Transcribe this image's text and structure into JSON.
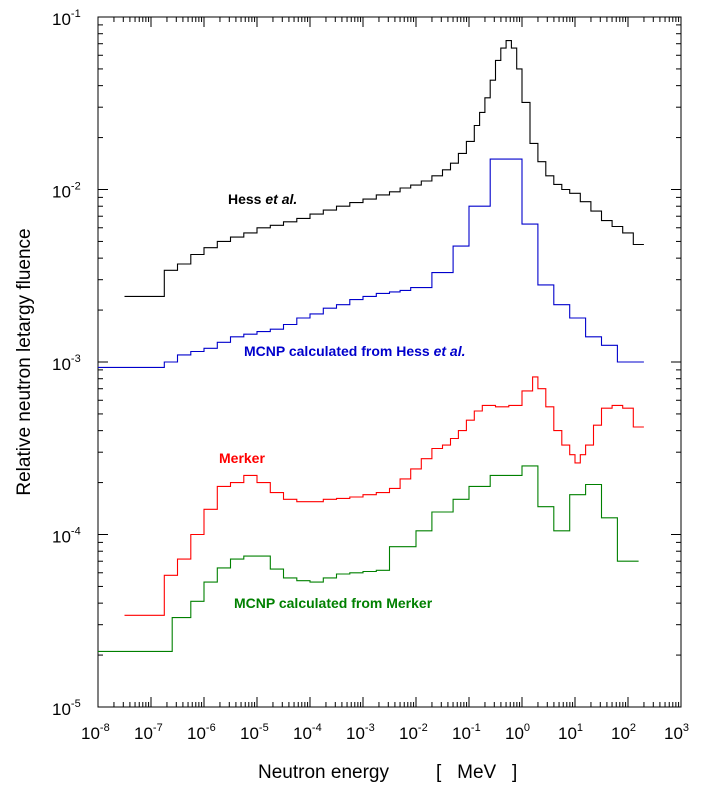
{
  "chart_data": {
    "type": "line",
    "title": "",
    "xlabel": "Neutron energy",
    "xunit": "[   MeV   ]",
    "ylabel": "Relative neutron letargy fluence",
    "xscale": "log",
    "yscale": "log",
    "xlim_exp": [
      -8,
      3
    ],
    "ylim_exp": [
      -5,
      -1
    ],
    "x_ticks": [
      {
        "base": "10",
        "exp": "-8"
      },
      {
        "base": "10",
        "exp": "-7"
      },
      {
        "base": "10",
        "exp": "-6"
      },
      {
        "base": "10",
        "exp": "-5"
      },
      {
        "base": "10",
        "exp": "-4"
      },
      {
        "base": "10",
        "exp": "-3"
      },
      {
        "base": "10",
        "exp": "-2"
      },
      {
        "base": "10",
        "exp": "-1"
      },
      {
        "base": "10",
        "exp": "0"
      },
      {
        "base": "10",
        "exp": "1"
      },
      {
        "base": "10",
        "exp": "2"
      },
      {
        "base": "10",
        "exp": "3"
      }
    ],
    "y_ticks": [
      {
        "base": "10",
        "exp": "-5"
      },
      {
        "base": "10",
        "exp": "-4"
      },
      {
        "base": "10",
        "exp": "-3"
      },
      {
        "base": "10",
        "exp": "-2"
      },
      {
        "base": "10",
        "exp": "-1"
      }
    ],
    "series": [
      {
        "name": "Hess et al.",
        "label_main": "Hess ",
        "label_italic": "et al.",
        "color": "#000000",
        "edges": [
          -7.5,
          -6.75,
          -6.5,
          -6.25,
          -6,
          -5.75,
          -5.5,
          -5.25,
          -5,
          -4.75,
          -4.5,
          -4.25,
          -4,
          -3.75,
          -3.5,
          -3.25,
          -3,
          -2.75,
          -2.5,
          -2.3,
          -2.1,
          -1.9,
          -1.7,
          -1.5,
          -1.35,
          -1.2,
          -1.05,
          -0.9,
          -0.8,
          -0.7,
          -0.6,
          -0.5,
          -0.4,
          -0.3,
          -0.2,
          -0.1,
          0,
          0.15,
          0.3,
          0.45,
          0.6,
          0.75,
          0.9,
          1.1,
          1.3,
          1.5,
          1.7,
          1.9,
          2.1,
          2.3
        ],
        "values": [
          0.0024,
          0.0034,
          0.0037,
          0.0042,
          0.0046,
          0.005,
          0.0053,
          0.0056,
          0.006,
          0.0062,
          0.0065,
          0.0068,
          0.0072,
          0.0076,
          0.008,
          0.0084,
          0.0088,
          0.0093,
          0.0097,
          0.0102,
          0.0106,
          0.0112,
          0.012,
          0.013,
          0.0142,
          0.0162,
          0.019,
          0.0235,
          0.028,
          0.034,
          0.043,
          0.056,
          0.066,
          0.073,
          0.066,
          0.05,
          0.032,
          0.0185,
          0.0145,
          0.012,
          0.0107,
          0.01,
          0.0095,
          0.0085,
          0.0075,
          0.0066,
          0.0061,
          0.0056,
          0.0048
        ]
      },
      {
        "name": "MCNP calculated from Hess et al.",
        "label_main": "MCNP calculated from Hess ",
        "label_italic": "et al.",
        "color": "#0000cc",
        "edges": [
          -8,
          -6.75,
          -6.5,
          -6.25,
          -6,
          -5.75,
          -5.5,
          -5.25,
          -5,
          -4.75,
          -4.5,
          -4.25,
          -4,
          -3.75,
          -3.5,
          -3.25,
          -3,
          -2.75,
          -2.5,
          -2.3,
          -2.1,
          -1.7,
          -1.3,
          -1.0,
          -0.6,
          0,
          0.3,
          0.6,
          0.9,
          1.2,
          1.5,
          1.8,
          2.3
        ],
        "values": [
          0.00093,
          0.001,
          0.0011,
          0.00115,
          0.0012,
          0.0013,
          0.0014,
          0.00145,
          0.0015,
          0.00155,
          0.00165,
          0.0018,
          0.0019,
          0.00205,
          0.00215,
          0.0023,
          0.0024,
          0.0025,
          0.00255,
          0.0026,
          0.0027,
          0.0033,
          0.0047,
          0.008,
          0.015,
          0.0063,
          0.0028,
          0.00215,
          0.0018,
          0.0014,
          0.00125,
          0.001
        ]
      },
      {
        "name": "Merker",
        "label_main": "Merker",
        "label_italic": "",
        "color": "#ff0000",
        "edges": [
          -7.5,
          -6.75,
          -6.5,
          -6.25,
          -6,
          -5.75,
          -5.5,
          -5.25,
          -5,
          -4.75,
          -4.5,
          -4.25,
          -4,
          -3.75,
          -3.5,
          -3.25,
          -3,
          -2.75,
          -2.5,
          -2.3,
          -2.1,
          -1.9,
          -1.7,
          -1.5,
          -1.35,
          -1.2,
          -1.05,
          -0.9,
          -0.75,
          -0.5,
          -0.25,
          0,
          0.2,
          0.3,
          0.45,
          0.6,
          0.75,
          0.9,
          1.0,
          1.1,
          1.2,
          1.35,
          1.5,
          1.7,
          1.9,
          2.1,
          2.3
        ],
        "values": [
          3.4e-05,
          5.8e-05,
          7.2e-05,
          0.0001,
          0.00014,
          0.00019,
          0.0002,
          0.00022,
          0.0002,
          0.000175,
          0.00016,
          0.000155,
          0.000155,
          0.00016,
          0.000162,
          0.000165,
          0.00017,
          0.000175,
          0.000185,
          0.00021,
          0.00024,
          0.000275,
          0.000315,
          0.00033,
          0.00036,
          0.0004,
          0.00046,
          0.00052,
          0.00056,
          0.00055,
          0.00056,
          0.00068,
          0.00082,
          0.0007,
          0.00055,
          0.0004,
          0.00033,
          0.00029,
          0.00026,
          0.00029,
          0.00033,
          0.00043,
          0.00054,
          0.00056,
          0.00054,
          0.00042
        ]
      },
      {
        "name": "MCNP calculated from Merker",
        "label_main": "MCNP calculated from Merker",
        "label_italic": "",
        "color": "#008000",
        "edges": [
          -8,
          -6.6,
          -6.25,
          -6,
          -5.75,
          -5.5,
          -5.25,
          -5,
          -4.75,
          -4.5,
          -4.25,
          -4,
          -3.75,
          -3.5,
          -3.25,
          -3,
          -2.75,
          -2.5,
          -2.0,
          -1.7,
          -1.3,
          -1.0,
          -0.6,
          0,
          0.3,
          0.6,
          0.9,
          1.2,
          1.5,
          1.8,
          2.2
        ],
        "values": [
          2.1e-05,
          3.3e-05,
          4.1e-05,
          5.3e-05,
          6.4e-05,
          7.2e-05,
          7.5e-05,
          7.5e-05,
          6.3e-05,
          5.6e-05,
          5.4e-05,
          5.3e-05,
          5.6e-05,
          5.9e-05,
          6e-05,
          6.1e-05,
          6.2e-05,
          8.5e-05,
          0.000105,
          0.000135,
          0.00016,
          0.00019,
          0.00022,
          0.00025,
          0.000145,
          0.000105,
          0.00017,
          0.000195,
          0.000125,
          7e-05
        ]
      }
    ]
  }
}
